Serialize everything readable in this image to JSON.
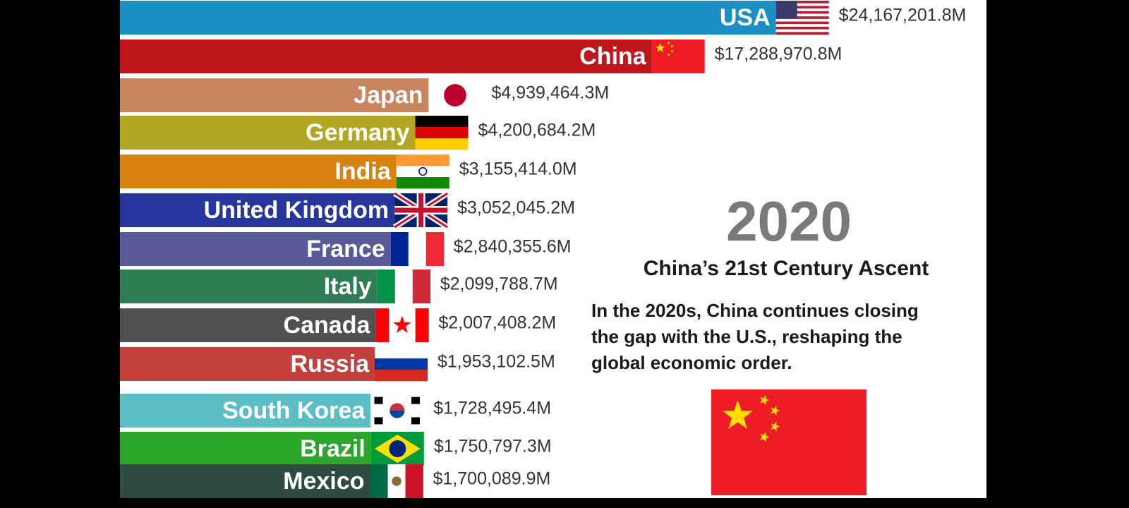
{
  "chart_data": {
    "type": "bar",
    "orientation": "horizontal",
    "categories": [
      "USA",
      "China",
      "Japan",
      "Germany",
      "India",
      "United Kingdom",
      "France",
      "Italy",
      "Canada",
      "Russia",
      "South Korea",
      "Brazil",
      "Mexico"
    ],
    "values": [
      24167201.8,
      17288970.8,
      4939464.3,
      4200684.2,
      3155414.0,
      3052045.2,
      2840355.6,
      2099788.7,
      2007408.2,
      1953102.5,
      1728495.4,
      1750797.3,
      1700089.9
    ],
    "value_labels": [
      "$24,167,201.8M",
      "$17,288,970.8M",
      "$4,939,464.3M",
      "$4,200,684.2M",
      "$3,155,414.0M",
      "$3,052,045.2M",
      "$2,840,355.6M",
      "$2,099,788.7M",
      "$2,007,408.2M",
      "$1,953,102.5M",
      "$1,728,495.4M",
      "$1,750,797.3M",
      "$1,700,089.9M"
    ],
    "colors": [
      "#1b8ec4",
      "#c0161b",
      "#c8865f",
      "#b2a724",
      "#d8830f",
      "#26369c",
      "#595a9a",
      "#2e7d55",
      "#505050",
      "#c2413f",
      "#5bbec4",
      "#2aa62a",
      "#2f4a3f"
    ],
    "year": "2020",
    "subtitle": "China’s 21st Century Ascent",
    "description": [
      "In the 2020s, China continues closing",
      "the gap with the U.S., reshaping the",
      "global economic order."
    ]
  }
}
